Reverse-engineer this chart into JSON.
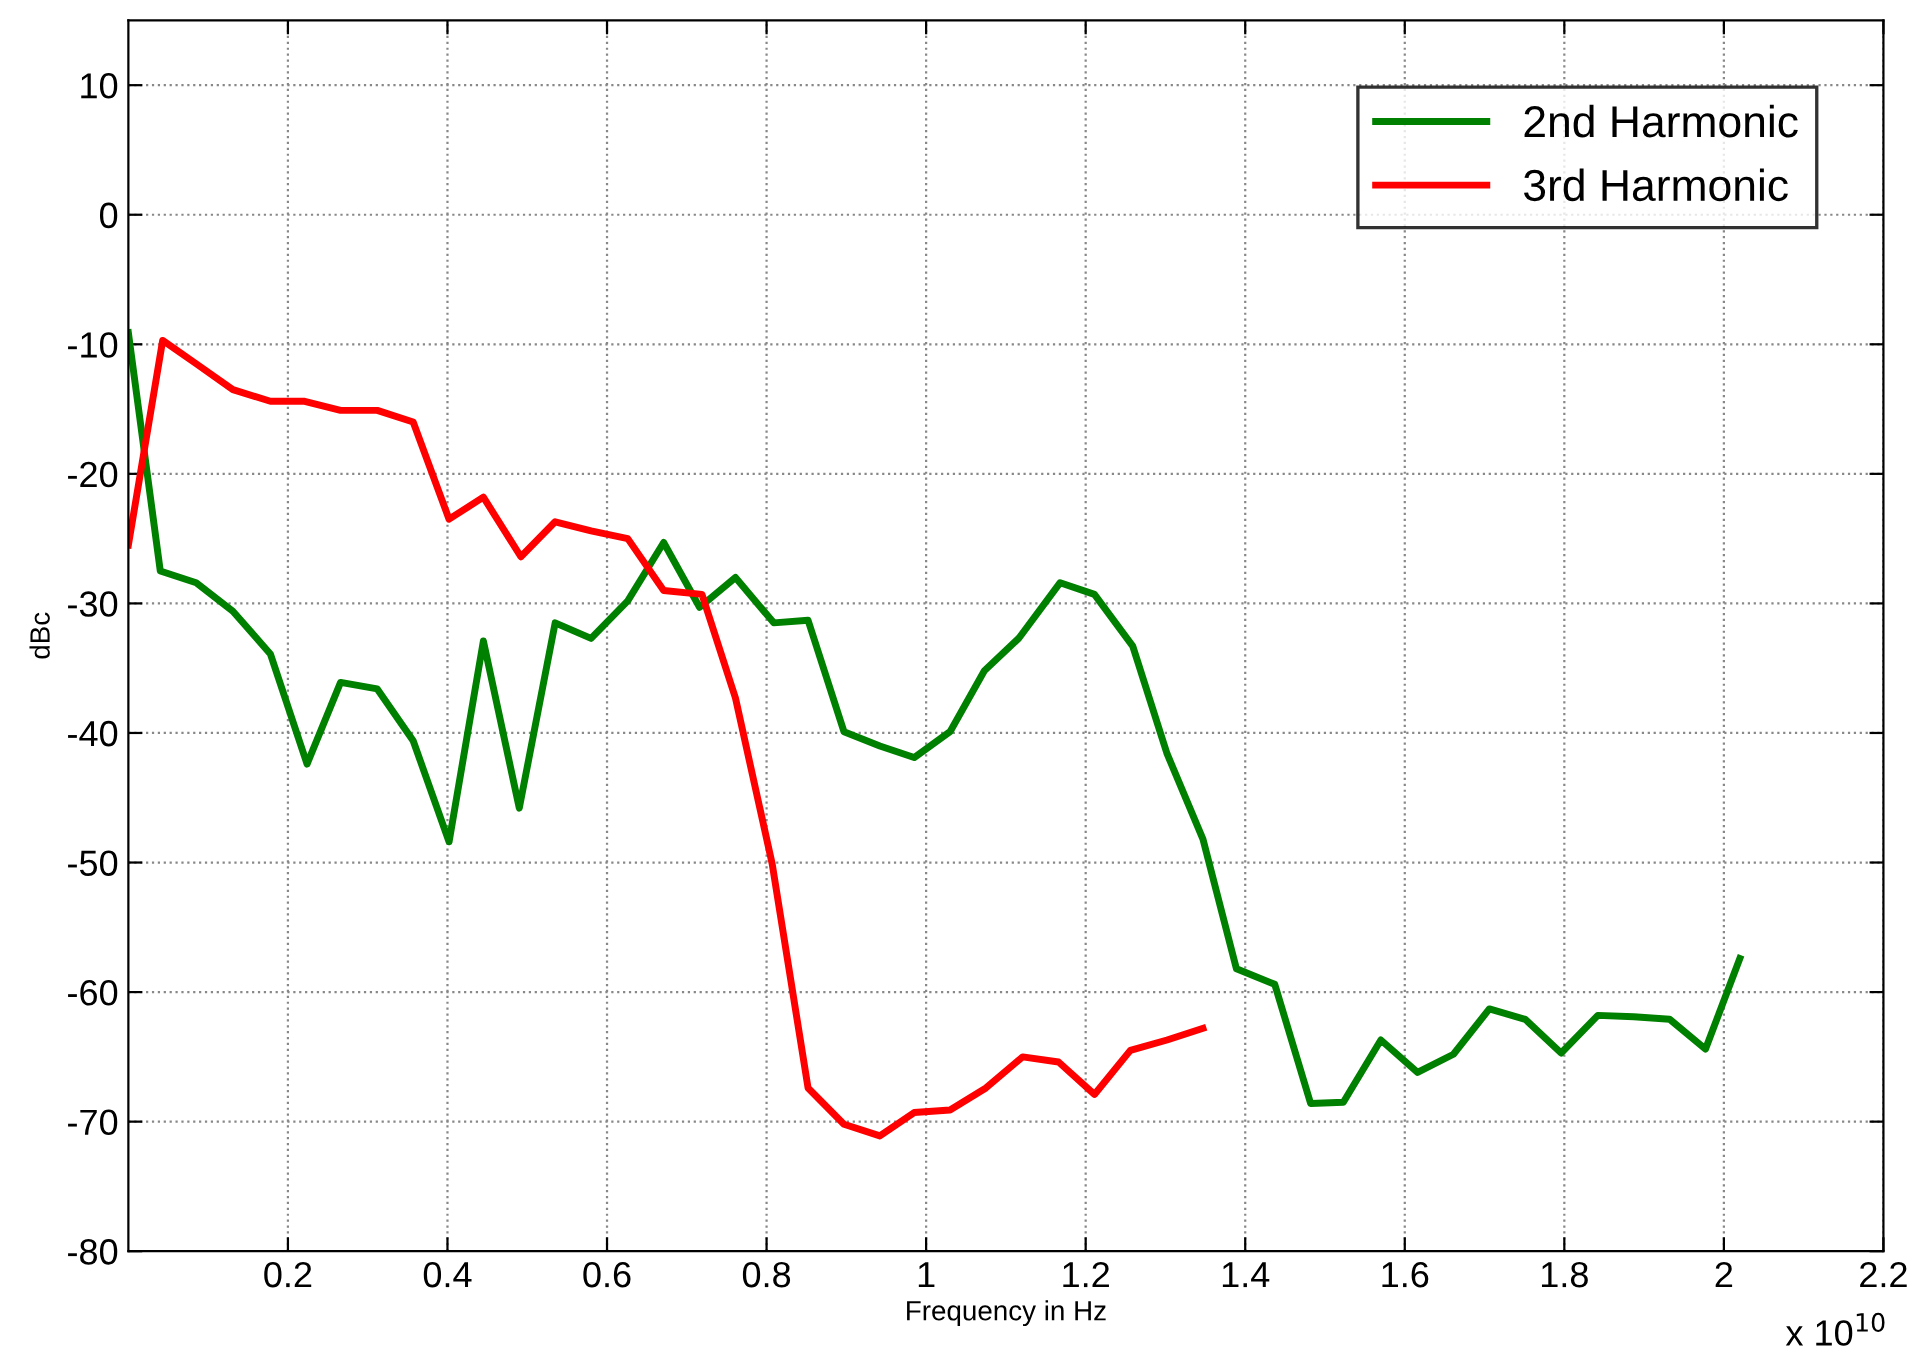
{
  "chart_data": {
    "type": "line",
    "xlabel": "Frequency in Hz",
    "ylabel": "dBc",
    "annotations": [
      "x 10$^{10}$"
    ],
    "xlim": [
      0,
      2.2
    ],
    "xticks": [
      0.2,
      0.4,
      0.6,
      0.8,
      1,
      1.2,
      1.4,
      1.6,
      1.8,
      2,
      2.2
    ],
    "ylim": [
      -80,
      15
    ],
    "yticks": [
      -80,
      -70,
      -60,
      -50,
      -40,
      -30,
      -20,
      -10,
      0,
      10
    ],
    "grid": true,
    "legend": "top right",
    "line_style": "solid",
    "series": [
      {
        "name": "2nd Harmonic",
        "color": "#008000",
        "x": [
          0,
          0.04,
          0.085,
          0.131,
          0.178,
          0.224,
          0.266,
          0.312,
          0.357,
          0.402,
          0.445,
          0.49,
          0.535,
          0.58,
          0.626,
          0.671,
          0.716,
          0.761,
          0.809,
          0.852,
          0.897,
          0.942,
          0.985,
          1.03,
          1.073,
          1.116,
          1.168,
          1.211,
          1.259,
          1.302,
          1.347,
          1.389,
          1.437,
          1.482,
          1.523,
          1.57,
          1.616,
          1.661,
          1.706,
          1.751,
          1.796,
          1.842,
          1.887,
          1.932,
          1.977,
          2.02
        ],
        "values": [
          -9.1,
          -27.5,
          -28.4,
          -30.6,
          -33.9,
          -42.4,
          -36.1,
          -36.6,
          -40.6,
          -48.4,
          -32.9,
          -45.8,
          -31.5,
          -32.7,
          -29.8,
          -25.3,
          -30.3,
          -28.0,
          -31.5,
          -31.3,
          -39.9,
          -41.0,
          -41.9,
          -39.9,
          -35.2,
          -32.7,
          -28.4,
          -29.3,
          -33.3,
          -41.6,
          -48.2,
          -58.2,
          -59.4,
          -68.6,
          -68.5,
          -63.7,
          -66.2,
          -64.8,
          -61.3,
          -62.1,
          -64.7,
          -61.8,
          -61.9,
          -62.1,
          -64.4,
          -57.4
        ]
      },
      {
        "name": "3rd Harmonic",
        "color": "#ff0000",
        "x": [
          0,
          0.043,
          0.085,
          0.131,
          0.178,
          0.221,
          0.266,
          0.312,
          0.357,
          0.402,
          0.445,
          0.492,
          0.535,
          0.58,
          0.626,
          0.671,
          0.719,
          0.761,
          0.807,
          0.852,
          0.897,
          0.942,
          0.985,
          1.03,
          1.075,
          1.121,
          1.166,
          1.211,
          1.256,
          1.302,
          1.347
        ],
        "values": [
          -25.5,
          -9.7,
          -11.5,
          -13.5,
          -14.4,
          -14.4,
          -15.1,
          -15.1,
          -16.0,
          -23.5,
          -21.8,
          -26.4,
          -23.7,
          -24.4,
          -25.0,
          -29.0,
          -29.3,
          -37.3,
          -50.1,
          -67.4,
          -70.2,
          -71.1,
          -69.3,
          -69.1,
          -67.4,
          -65.0,
          -65.4,
          -67.9,
          -64.5,
          -63.7,
          -62.8
        ]
      }
    ]
  }
}
